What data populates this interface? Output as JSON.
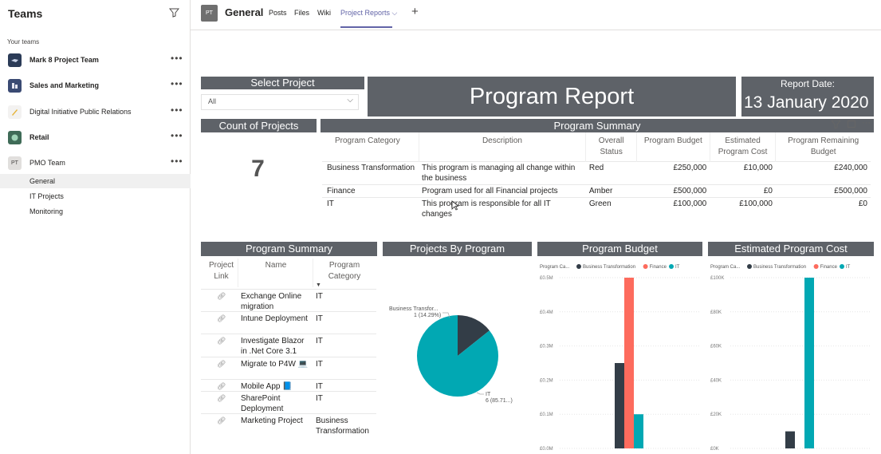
{
  "sidebar": {
    "title": "Teams",
    "your_teams": "Your teams",
    "teams": [
      {
        "name": "Mark 8 Project Team",
        "bold": true,
        "color": "#2b3b57",
        "initials": ""
      },
      {
        "name": "Sales and Marketing",
        "bold": true,
        "color": "#3a4a73",
        "initials": ""
      },
      {
        "name": "Digital Initiative Public Relations",
        "bold": false,
        "color": "#e6b43a",
        "initials": ""
      },
      {
        "name": "Retail",
        "bold": true,
        "color": "#3f7d5b",
        "initials": ""
      },
      {
        "name": "PMO Team",
        "bold": false,
        "color": "#e1dfdd",
        "initials": "PT"
      }
    ],
    "channels": [
      "General",
      "IT Projects",
      "Monitoring"
    ],
    "more": "•••"
  },
  "header": {
    "avatar": "PT",
    "channel": "General",
    "tabs": [
      "Posts",
      "Files",
      "Wiki",
      "Project Reports"
    ],
    "active_tab_chevron": "⌵"
  },
  "report": {
    "select_project_label": "Select Project",
    "select_value": "All",
    "title": "Program Report",
    "report_date_label": "Report Date:",
    "report_date": "13 January 2020",
    "count_label": "Count of Projects",
    "count_value": "7",
    "program_summary_title": "Program Summary",
    "summary_headers": [
      "Program Category",
      "Description",
      "Overall Status",
      "Program Budget",
      "Estimated Program Cost",
      "Program Remaining Budget"
    ],
    "summary_rows": [
      [
        "Business Transformation",
        "This program is managing all change within the business",
        "Red",
        "£250,000",
        "£10,000",
        "£240,000"
      ],
      [
        "Finance",
        "Program used for all Financial projects",
        "Amber",
        "£500,000",
        "£0",
        "£500,000"
      ],
      [
        "IT",
        "This program is responsible for all IT changes",
        "Green",
        "£100,000",
        "£100,000",
        "£0"
      ]
    ],
    "program_summary2_title": "Program Summary",
    "ps_headers": [
      "Project Link",
      "Name",
      "Program Category"
    ],
    "ps_rows": [
      [
        "Exchange Online migration",
        "IT"
      ],
      [
        "Intune Deployment",
        "IT"
      ],
      [
        "Investigate Blazor in .Net Core 3.1",
        "IT"
      ],
      [
        "Migrate to P4W 💻",
        "IT"
      ],
      [
        "Mobile App 📘",
        "IT"
      ],
      [
        "SharePoint Deployment",
        "IT"
      ],
      [
        "Marketing Project",
        "Business Transformation"
      ]
    ],
    "projects_by_program_title": "Projects By Program",
    "program_budget_title": "Program Budget",
    "estimated_cost_title": "Estimated Program Cost"
  },
  "chart_data": [
    {
      "type": "pie",
      "title": "Projects By Program",
      "slices": [
        {
          "label": "Business Transfor...",
          "value": 1,
          "pct_label": "1 (14.29%)",
          "color": "#333d47"
        },
        {
          "label": "IT",
          "value": 6,
          "pct_label": "6 (85.71...)",
          "color": "#01a8b3"
        }
      ]
    },
    {
      "type": "bar",
      "title": "Program Budget",
      "legend_title": "Program Ca...",
      "series": [
        {
          "name": "Business Transformation",
          "values": [
            250000
          ],
          "color": "#333d47"
        },
        {
          "name": "Finance",
          "values": [
            500000
          ],
          "color": "#fd6b5d"
        },
        {
          "name": "IT",
          "values": [
            100000
          ],
          "color": "#01a8b3"
        }
      ],
      "ylim": [
        0,
        500000
      ],
      "yticks": [
        "£0.5M",
        "£0.4M",
        "£0.3M",
        "£0.2M",
        "£0.1M",
        "£0.0M"
      ]
    },
    {
      "type": "bar",
      "title": "Estimated Program Cost",
      "legend_title": "Program Ca...",
      "series": [
        {
          "name": "Business Transformation",
          "values": [
            10000
          ],
          "color": "#333d47"
        },
        {
          "name": "Finance",
          "values": [
            0
          ],
          "color": "#fd6b5d"
        },
        {
          "name": "IT",
          "values": [
            100000
          ],
          "color": "#01a8b3"
        }
      ],
      "ylim": [
        0,
        100000
      ],
      "yticks": [
        "£100K",
        "£80K",
        "£60K",
        "£40K",
        "£20K",
        "£0K"
      ]
    }
  ]
}
